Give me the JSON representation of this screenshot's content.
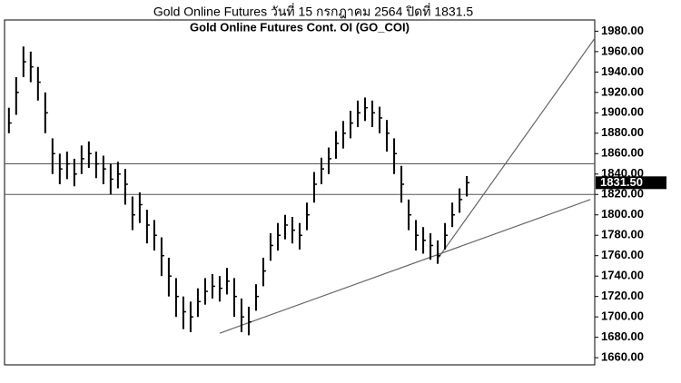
{
  "chart_data": {
    "type": "ohlc",
    "title": "Gold Online Futures วันที่   15 กรกฎาคม   2564 ปิดที่   1831.5",
    "subtitle": "Gold Online Futures Cont. OI (GO_COI)",
    "color": "#000000",
    "xlim": [
      -0.6,
      80.6
    ],
    "ylim": [
      1653,
      1991
    ],
    "yticks": [
      {
        "value": 1660,
        "label": "1660.00"
      },
      {
        "value": 1680,
        "label": "1680.00"
      },
      {
        "value": 1700,
        "label": "1700.00"
      },
      {
        "value": 1720,
        "label": "1720.00"
      },
      {
        "value": 1740,
        "label": "1740.00"
      },
      {
        "value": 1760,
        "label": "1760.00"
      },
      {
        "value": 1780,
        "label": "1780.00"
      },
      {
        "value": 1800,
        "label": "1800.00"
      },
      {
        "value": 1820,
        "label": "1820.00"
      },
      {
        "value": 1840,
        "label": "1840.00"
      },
      {
        "value": 1860,
        "label": "1860.00"
      },
      {
        "value": 1880,
        "label": "1880.00"
      },
      {
        "value": 1900,
        "label": "1900.00"
      },
      {
        "value": 1920,
        "label": "1920.00"
      },
      {
        "value": 1940,
        "label": "1940.00"
      },
      {
        "value": 1960,
        "label": "1960.00"
      },
      {
        "value": 1980,
        "label": "1980.00"
      }
    ],
    "high": [
      1905,
      1935,
      1965,
      1960,
      1945,
      1920,
      1875,
      1860,
      1862,
      1855,
      1868,
      1872,
      1862,
      1858,
      1850,
      1852,
      1845,
      1818,
      1822,
      1805,
      1795,
      1778,
      1758,
      1738,
      1720,
      1715,
      1728,
      1738,
      1742,
      1740,
      1748,
      1738,
      1718,
      1710,
      1732,
      1758,
      1782,
      1792,
      1800,
      1798,
      1792,
      1812,
      1842,
      1856,
      1866,
      1882,
      1892,
      1902,
      1912,
      1915,
      1912,
      1906,
      1893,
      1875,
      1848,
      1815,
      1795,
      1788,
      1782,
      1775,
      1792,
      1812,
      1826,
      1838
    ],
    "low": [
      1880,
      1898,
      1935,
      1930,
      1912,
      1880,
      1840,
      1830,
      1835,
      1828,
      1840,
      1846,
      1836,
      1830,
      1820,
      1826,
      1810,
      1785,
      1792,
      1772,
      1765,
      1740,
      1720,
      1700,
      1688,
      1685,
      1700,
      1712,
      1718,
      1715,
      1722,
      1700,
      1685,
      1682,
      1706,
      1730,
      1755,
      1765,
      1776,
      1772,
      1766,
      1785,
      1812,
      1830,
      1840,
      1855,
      1865,
      1875,
      1886,
      1892,
      1886,
      1880,
      1862,
      1840,
      1812,
      1785,
      1765,
      1762,
      1756,
      1752,
      1766,
      1788,
      1802,
      1818
    ],
    "close": [
      1890,
      1920,
      1950,
      1945,
      1930,
      1900,
      1860,
      1845,
      1850,
      1840,
      1855,
      1860,
      1850,
      1845,
      1835,
      1840,
      1830,
      1800,
      1810,
      1790,
      1780,
      1760,
      1740,
      1720,
      1705,
      1700,
      1715,
      1725,
      1730,
      1728,
      1735,
      1720,
      1700,
      1695,
      1720,
      1745,
      1770,
      1780,
      1790,
      1785,
      1780,
      1800,
      1830,
      1845,
      1855,
      1870,
      1880,
      1890,
      1900,
      1905,
      1900,
      1895,
      1880,
      1860,
      1830,
      1800,
      1780,
      1775,
      1770,
      1760,
      1780,
      1800,
      1815,
      1831.5
    ],
    "levels": [
      1850,
      1820
    ],
    "trendlines": [
      {
        "from": [
          59,
          1757
        ],
        "to": [
          80.6,
          1973
        ]
      },
      {
        "from": [
          29,
          1684
        ],
        "to": [
          80,
          1815
        ]
      }
    ],
    "last": {
      "value": 1831.5,
      "label": "1831.50"
    }
  }
}
